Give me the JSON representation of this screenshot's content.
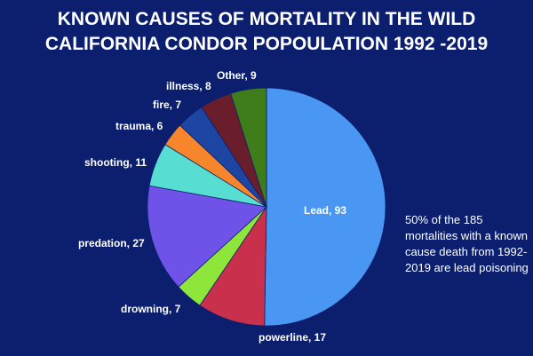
{
  "title": {
    "line1": "KNOWN CAUSES OF MORTALITY IN THE WILD",
    "line2": "CALIFORNIA CONDOR POPOULATION 1992 -2019"
  },
  "note": "50% of the 185 mortalities with a known cause death from 1992-2019 are lead poisoning",
  "chart_data": {
    "type": "pie",
    "title": "KNOWN CAUSES OF MORTALITY IN THE WILD CALIFORNIA CONDOR POPOULATION 1992 -2019",
    "total": 185,
    "slices": [
      {
        "label": "Lead, 93",
        "name": "Lead",
        "value": 93,
        "color": "#4a97f3"
      },
      {
        "label": "powerline, 17",
        "name": "powerline",
        "value": 17,
        "color": "#c8304c"
      },
      {
        "label": "drowning, 7",
        "name": "drowning",
        "value": 7,
        "color": "#8ee63a"
      },
      {
        "label": "predation, 27",
        "name": "predation",
        "value": 27,
        "color": "#6f52e8"
      },
      {
        "label": "shooting, 11",
        "name": "shooting",
        "value": 11,
        "color": "#58ddd2"
      },
      {
        "label": "trauma, 6",
        "name": "trauma",
        "value": 6,
        "color": "#f7852b"
      },
      {
        "label": "fire, 7",
        "name": "fire",
        "value": 7,
        "color": "#1d46a3"
      },
      {
        "label": "illness, 8",
        "name": "illness",
        "value": 8,
        "color": "#6a1d2a"
      },
      {
        "label": "Other, 9",
        "name": "other",
        "value": 9,
        "color": "#3f7d1a"
      }
    ]
  }
}
